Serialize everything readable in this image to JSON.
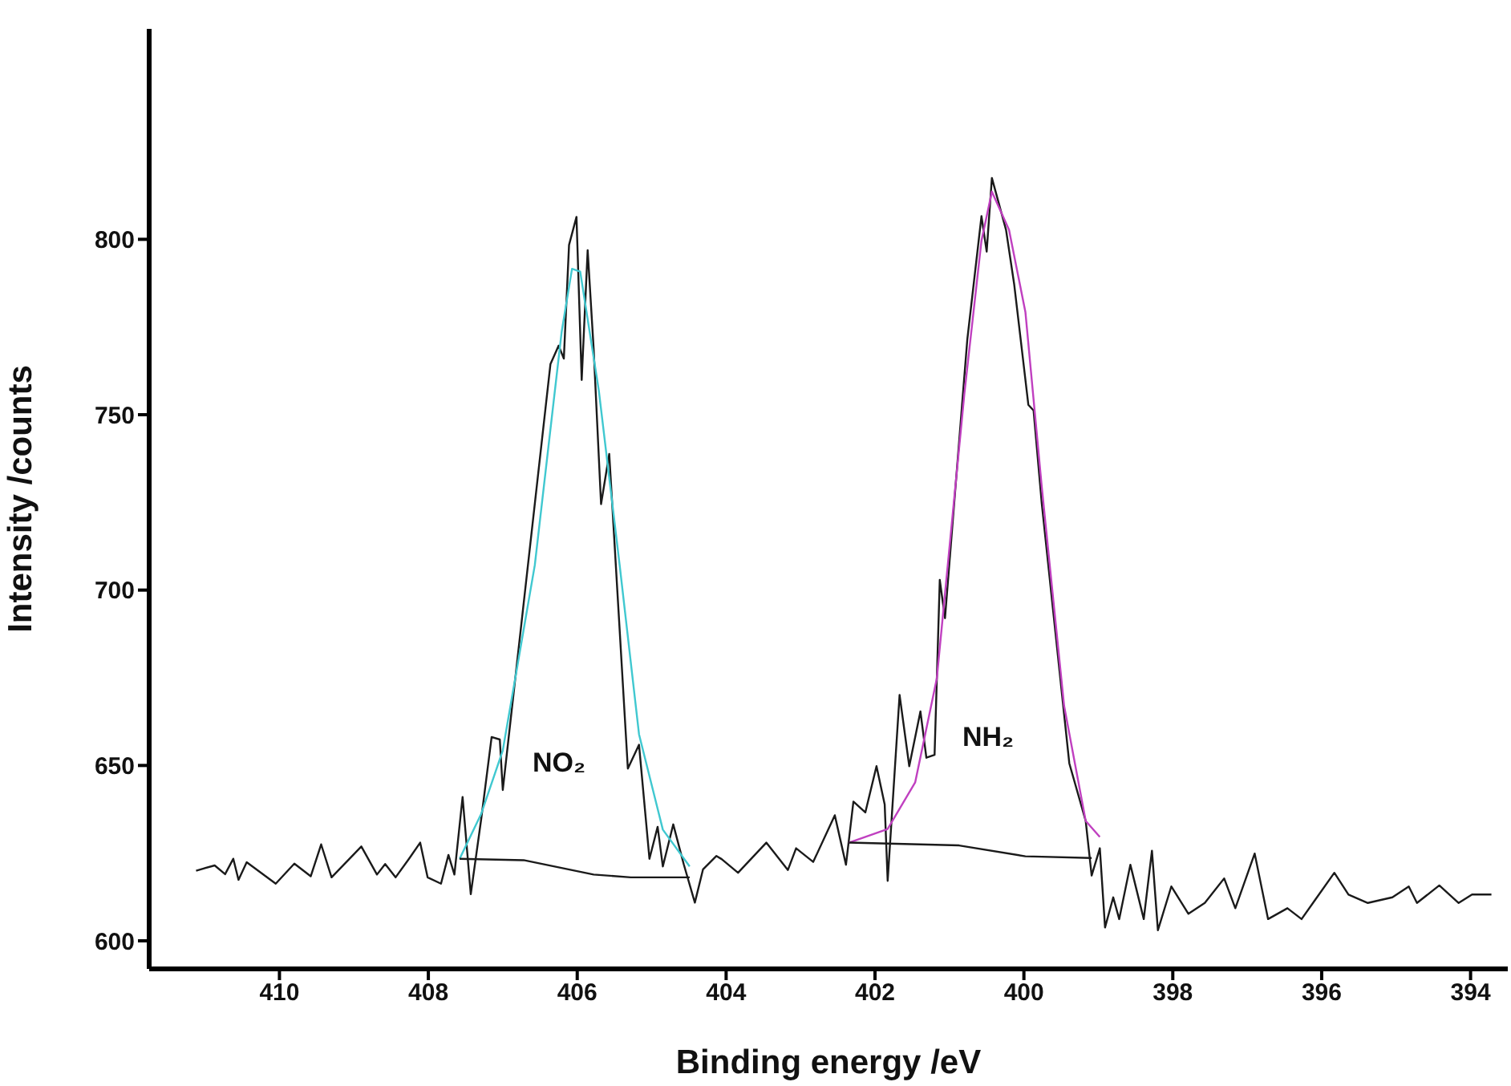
{
  "chart_data": {
    "type": "line",
    "xlabel": "Binding energy /eV",
    "ylabel": "Intensity /counts",
    "xlim": [
      411.75,
      393.5
    ],
    "ylim": [
      592,
      860
    ],
    "xticks": [
      410,
      408,
      406,
      404,
      402,
      400,
      398,
      396,
      394
    ],
    "yticks": [
      600,
      650,
      700,
      750,
      800
    ],
    "grid": false,
    "marker": "none",
    "line_style": "solid",
    "annotations": [
      "NO₂",
      "NH₂"
    ],
    "series": [
      {
        "color": "#1a1a1a",
        "x": [
          411.12,
          410.87,
          410.73,
          410.62,
          410.55,
          410.44,
          410.05,
          409.8,
          409.58,
          409.44,
          409.3,
          408.9,
          408.69,
          408.58,
          408.44,
          408.26,
          408.11,
          408.01,
          407.83,
          407.73,
          407.65,
          407.54,
          407.43,
          407.29,
          407.15,
          407.04,
          407,
          406.36,
          406.25,
          406.18,
          406.11,
          406.01,
          405.94,
          405.86,
          405.78,
          405.68,
          405.57,
          405.32,
          405.17,
          405.03,
          404.92,
          404.85,
          404.71,
          404.57,
          404.42,
          404.31,
          404.13,
          404.06,
          403.84,
          403.46,
          403.17,
          403.06,
          402.83,
          402.54,
          402.39,
          402.29,
          402.13,
          401.98,
          401.87,
          401.83,
          401.67,
          401.54,
          401.39,
          401.31,
          401.2,
          401.13,
          401.06,
          400.76,
          400.57,
          400.5,
          400.43,
          400.24,
          400.13,
          399.94,
          399.87,
          399.76,
          399.39,
          399.17,
          399.09,
          398.98,
          398.91,
          398.8,
          398.72,
          398.57,
          398.39,
          398.28,
          398.2,
          398.02,
          397.79,
          397.57,
          397.31,
          397.16,
          396.9,
          396.72,
          396.46,
          396.27,
          396.09,
          395.83,
          395.64,
          395.38,
          395.05,
          394.83,
          394.72,
          394.42,
          394.16,
          393.98,
          393.72
        ],
        "values": [
          620,
          621.5,
          619,
          623.4,
          617.4,
          622.4,
          616.3,
          622,
          618.4,
          627.5,
          618.1,
          626.9,
          618.9,
          621.9,
          618.1,
          623.4,
          628,
          618.1,
          616.3,
          624.5,
          618.9,
          641,
          613.3,
          634.7,
          658.1,
          657.4,
          643,
          764.4,
          769.7,
          766,
          798.4,
          806.4,
          759.9,
          796.9,
          769,
          724.5,
          738.8,
          649.1,
          655.9,
          623.4,
          632.5,
          621.2,
          633.2,
          621.9,
          610.9,
          620.4,
          624.2,
          623.3,
          619.4,
          628,
          620.2,
          626.4,
          622.5,
          635.8,
          621.7,
          639.7,
          636.6,
          649.8,
          638.9,
          617.1,
          670.1,
          649.8,
          665.4,
          652.2,
          653,
          702.9,
          692,
          771.5,
          806.6,
          796.5,
          817.5,
          802.7,
          787.1,
          752.8,
          751.2,
          724.7,
          650.6,
          634.2,
          618.6,
          626.4,
          603.8,
          612.4,
          606.2,
          621.7,
          606.2,
          625.7,
          603,
          615.5,
          607.7,
          610.8,
          617.8,
          609.3,
          624.9,
          606.2,
          609.3,
          606.2,
          611.6,
          619.4,
          613.2,
          610.8,
          612.4,
          615.5,
          610.8,
          615.8,
          610.8,
          613.2,
          613.2
        ]
      },
      {
        "color": "#40c8d0",
        "x": [
          407.58,
          407.29,
          407,
          406.57,
          406.21,
          406.07,
          405.96,
          405.71,
          405.43,
          405.17,
          404.85,
          404.49
        ],
        "values": [
          623.4,
          636.2,
          654.3,
          707.1,
          773.5,
          791.6,
          790.8,
          756.9,
          707.1,
          658.9,
          631.7,
          621.2
        ]
      },
      {
        "color": "#1a1a1a",
        "x": [
          407.58,
          406.72,
          405.78,
          405.28,
          404.49
        ],
        "values": [
          623.4,
          623,
          618.9,
          618.1,
          618.1
        ]
      },
      {
        "color": "#c040c0",
        "x": [
          402.35,
          401.83,
          401.46,
          401.17,
          400.8,
          400.57,
          400.43,
          400.2,
          399.98,
          399.76,
          399.46,
          399.17,
          398.98
        ],
        "values": [
          628,
          631.9,
          645.2,
          674.8,
          755.9,
          799.6,
          813.6,
          802.7,
          779.3,
          729.4,
          667,
          634.2,
          629.6
        ]
      },
      {
        "color": "#1a1a1a",
        "x": [
          402.35,
          400.87,
          399.98,
          399.09
        ],
        "values": [
          628,
          627.2,
          624.1,
          623.6
        ]
      }
    ]
  }
}
